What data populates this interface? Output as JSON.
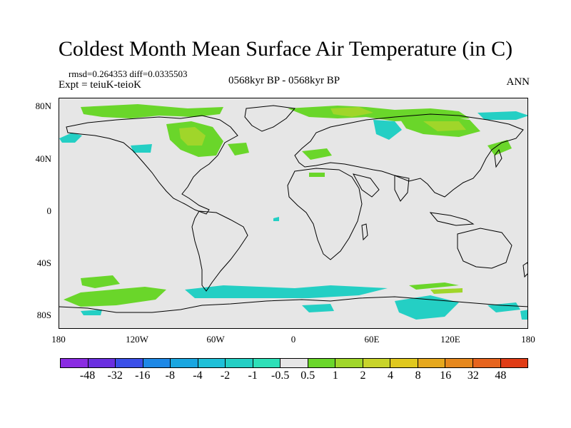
{
  "title": "Coldest Month Mean Surface Air Temperature (in C)",
  "stats": {
    "rmsd_label": "rmsd=",
    "rmsd_value": "0.264353",
    "diff_label": "diff=",
    "diff_value": "0.0335503"
  },
  "expt": "Expt = teiuK-teioK",
  "period": "0568kyr BP - 0568kyr BP",
  "season": "ANN",
  "map": {
    "lat_labels": [
      "80N",
      "40N",
      "0",
      "40S",
      "80S"
    ],
    "lon_labels": [
      "180",
      "120W",
      "60W",
      "0",
      "60E",
      "120E",
      "180"
    ],
    "missing_color": "#e6e6e6",
    "coast_color": "#000000"
  },
  "legend": {
    "colors": [
      "#8a2be2",
      "#6a2fe0",
      "#3a4fe8",
      "#1e88e6",
      "#1aa6e0",
      "#1fc0d8",
      "#24cfc4",
      "#2ee0b8",
      "#e6e6e6",
      "#6ad62a",
      "#a0d62a",
      "#c8d42a",
      "#e0c81e",
      "#e6a81e",
      "#e6881e",
      "#e6641e",
      "#e03c16"
    ],
    "labels": [
      "-48",
      "-32",
      "-16",
      "-8",
      "-4",
      "-2",
      "-1",
      "-0.5",
      "0.5",
      "1",
      "2",
      "4",
      "8",
      "16",
      "32",
      "48"
    ]
  }
}
